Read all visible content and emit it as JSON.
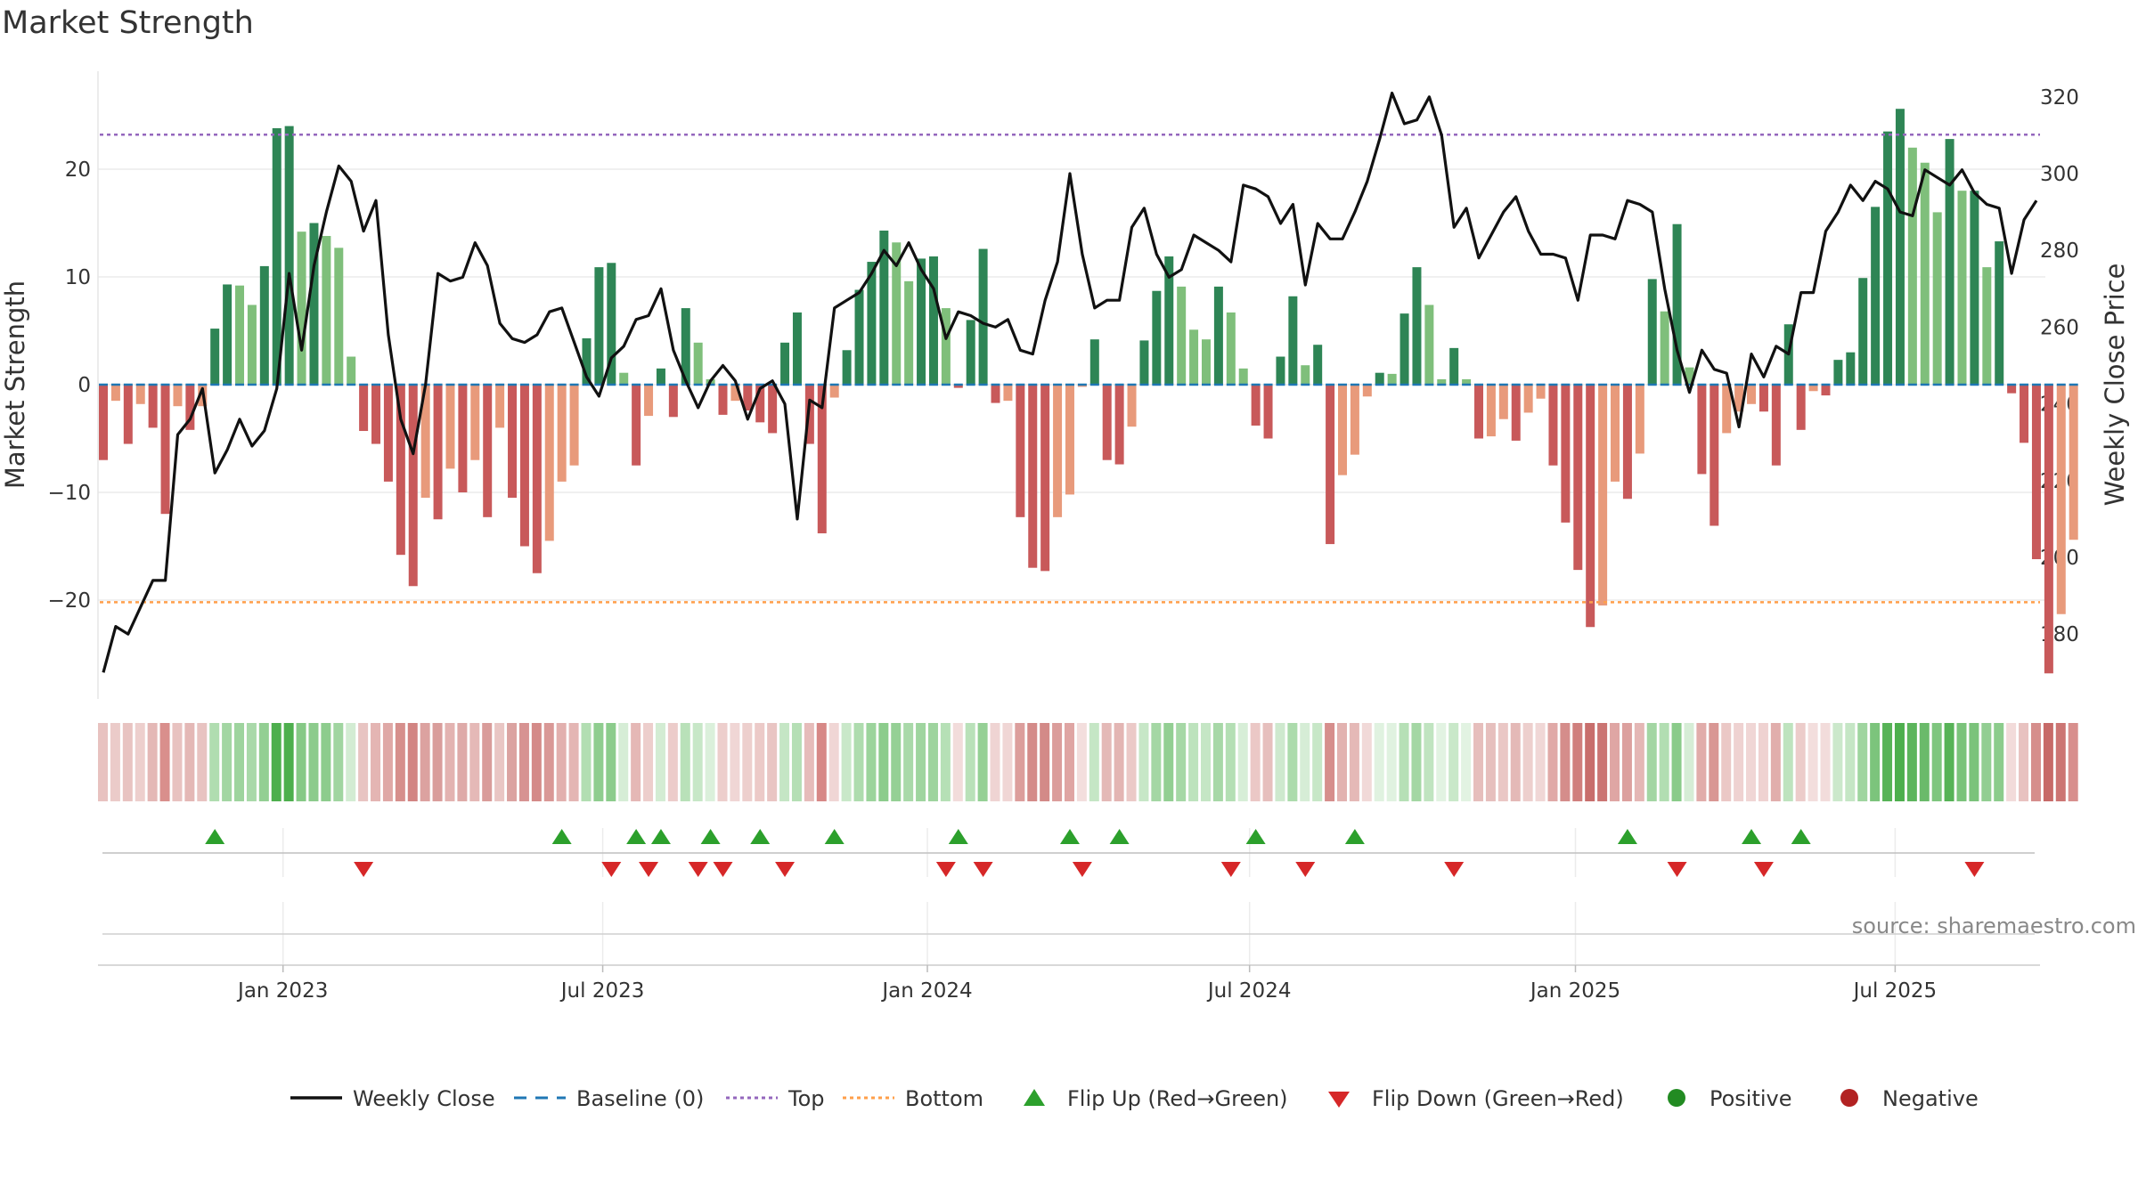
{
  "chart_data": {
    "type": "bar",
    "title": "Market Strength",
    "ylabel": "Market Strength",
    "y2label": "Weekly Close Price",
    "ylim": [
      -29,
      29.5
    ],
    "y2lim": [
      164,
      324
    ],
    "y_ticks": [
      20,
      10,
      0,
      -10,
      -20
    ],
    "y_tick_labels": [
      "20",
      "10",
      "0",
      "−10",
      "−20"
    ],
    "y2_ticks": [
      320,
      300,
      280,
      260,
      240,
      220,
      200,
      180
    ],
    "y2_tick_labels": [
      "320",
      "300",
      "280",
      "260",
      "240",
      "220",
      "200",
      "180"
    ],
    "x_ticks": [
      {
        "label": "Jan 2023",
        "index": 14.5
      },
      {
        "label": "Jul 2023",
        "index": 40.3
      },
      {
        "label": "Jan 2024",
        "index": 66.5
      },
      {
        "label": "Jul 2024",
        "index": 92.5
      },
      {
        "label": "Jan 2025",
        "index": 118.8
      },
      {
        "label": "Jul 2025",
        "index": 144.6
      }
    ],
    "top": 23.2,
    "bottom": -20.2,
    "strength": [
      -7,
      -1.5,
      -5.5,
      -1.8,
      -4,
      -12,
      -2,
      -4.2,
      -2,
      5.2,
      9.3,
      9.2,
      7.4,
      11,
      23.8,
      24,
      14.2,
      15,
      13.8,
      12.7,
      2.6,
      -4.3,
      -5.5,
      -9,
      -15.8,
      -18.7,
      -10.5,
      -12.5,
      -7.8,
      -10,
      -7,
      -12.3,
      -4,
      -10.5,
      -15,
      -17.5,
      -14.5,
      -9,
      -7.5,
      4.3,
      10.9,
      11.3,
      1.1,
      -7.5,
      -2.9,
      1.5,
      -3,
      7.1,
      3.9,
      0.5,
      -2.8,
      -1.5,
      -2.4,
      -3.5,
      -4.5,
      3.9,
      6.7,
      -5.5,
      -13.8,
      -1.2,
      3.2,
      8.8,
      11.4,
      14.3,
      13.2,
      9.6,
      11.7,
      11.9,
      7.1,
      -0.3,
      6,
      12.6,
      -1.7,
      -1.5,
      -12.3,
      -17,
      -17.3,
      -12.3,
      -10.2,
      -0.2,
      4.2,
      -7,
      -7.4,
      -3.9,
      4.1,
      8.7,
      11.9,
      9.1,
      5.1,
      4.2,
      9.1,
      6.7,
      1.5,
      -3.8,
      -5,
      2.6,
      8.2,
      1.8,
      3.7,
      -14.8,
      -8.4,
      -6.5,
      -1.1,
      1.1,
      1,
      6.6,
      10.9,
      7.4,
      0.5,
      3.4,
      0.5,
      -5,
      -4.8,
      -3.2,
      -5.2,
      -2.6,
      -1.3,
      -7.5,
      -12.8,
      -17.2,
      -22.5,
      -20.5,
      -9,
      -10.6,
      -6.4,
      9.8,
      6.8,
      14.9,
      1.6,
      -8.3,
      -13.1,
      -4.5,
      -2.5,
      -1.8,
      -2.5,
      -7.5,
      5.6,
      -4.2,
      -0.6,
      -1,
      2.3,
      3,
      9.9,
      16.5,
      23.5,
      25.6,
      22,
      20.6,
      16,
      22.8,
      18,
      18,
      10.9,
      13.3,
      -0.8,
      -5.4,
      -16.2,
      -26.8,
      -21.3,
      -14.4
    ],
    "weekly_close": [
      170,
      182,
      180,
      187,
      194,
      194,
      232,
      236,
      244,
      222,
      228,
      236,
      229,
      233,
      244,
      274,
      254,
      276,
      290,
      302,
      298,
      285,
      293,
      258,
      236,
      227,
      245,
      274,
      272,
      273,
      282,
      276,
      261,
      257,
      256,
      258,
      264,
      265,
      256,
      247,
      242,
      252,
      255,
      262,
      263,
      270,
      254,
      246,
      239,
      246,
      250,
      246,
      236,
      244,
      246,
      240,
      210,
      241,
      239,
      265,
      267,
      269,
      274,
      280,
      276,
      282,
      275,
      270,
      257,
      264,
      263,
      261,
      260,
      262,
      254,
      253,
      267,
      277,
      300,
      279,
      265,
      267,
      267,
      286,
      291,
      279,
      273,
      275,
      284,
      282,
      280,
      277,
      297,
      296,
      294,
      287,
      292,
      271,
      287,
      283,
      283,
      290,
      298,
      309,
      321,
      313,
      314,
      320,
      310,
      286,
      291,
      278,
      284,
      290,
      294,
      285,
      279,
      279,
      278,
      267,
      284,
      284,
      283,
      293,
      292,
      290,
      270,
      254,
      243,
      254,
      249,
      248,
      234,
      253,
      247,
      255,
      253,
      269,
      269,
      285,
      290,
      297,
      293,
      298,
      296,
      290,
      289,
      301,
      299,
      297,
      301,
      295,
      292,
      291,
      274,
      288,
      293
    ],
    "heat_colors": [
      "#e8c2c0",
      "#ebcbc9",
      "#e8c3c1",
      "#edcfcd",
      "#e4b8b6",
      "#d98f8c",
      "#e8c2c0",
      "#e4b8b6",
      "#e8c3c1",
      "#b0ddb0",
      "#a3d6a3",
      "#9ed49e",
      "#a9d9a9",
      "#93cf93",
      "#4daf4d",
      "#4daf4d",
      "#86c986",
      "#8ccb8c",
      "#8dcc8d",
      "#a0d5a0",
      "#d3ecd3",
      "#e8c4c2",
      "#e4b5b3",
      "#dfa8a6",
      "#d68f8c",
      "#d28482",
      "#dca2a0",
      "#d99d9b",
      "#e3b3b1",
      "#deaaa8",
      "#e5b9b7",
      "#d99c9a",
      "#e9c6c4",
      "#dba3a1",
      "#d79392",
      "#d48a88",
      "#d99896",
      "#e2b0ae",
      "#e4b6b4",
      "#b2deb2",
      "#8fcd8f",
      "#8ccc8c",
      "#d6edd6",
      "#e5b8b6",
      "#edcecc",
      "#d3ecd3",
      "#ecccca",
      "#b9e1b9",
      "#c7e7c7",
      "#dbf0db",
      "#edcecc",
      "#f0d6d5",
      "#edcfcd",
      "#eccac8",
      "#e9c5c3",
      "#c5e6c5",
      "#b5dfb5",
      "#e6bcba",
      "#d78886",
      "#f0d6d5",
      "#c9e8c9",
      "#aedcae",
      "#9cd49c",
      "#8ccc8c",
      "#95d095",
      "#a9d9a9",
      "#9fd59f",
      "#9ed49e",
      "#b6e0b6",
      "#f2dcdb",
      "#b9e1b9",
      "#95d095",
      "#efd4d3",
      "#f0d6d5",
      "#dc9e9c",
      "#d48b89",
      "#d38a88",
      "#db9d9b",
      "#df a5a3",
      "#f3dedd",
      "#c5e6c5",
      "#e4b9b7",
      "#e3b5b3",
      "#ebc9c7",
      "#c7e7c7",
      "#a4d7a4",
      "#93cf93",
      "#a6d8a6",
      "#bde3bd",
      "#c5e6c5",
      "#a7d8a7",
      "#b4dfb4",
      "#d7eed7",
      "#ebc8c6",
      "#e6bfbd",
      "#cee9ce",
      "#acdbac",
      "#d6edd6",
      "#c7e7c7",
      "#d68e8c",
      "#e2b2b0",
      "#e5b9b7",
      "#f1d9d8",
      "#e0f2e0",
      "#e0f2e0",
      "#b6e0b6",
      "#a4d7a4",
      "#c0e4c0",
      "#e2f3e2",
      "#c9e8c9",
      "#e2f3e2",
      "#e6bebc",
      "#e6bfbd",
      "#eac7c5",
      "#e4b9b7",
      "#edcfcd",
      "#f0d7d6",
      "#e0a9a7",
      "#d58d8b",
      "#d07f7d",
      "#c86e6c",
      "#cb7573",
      "#df a6a4",
      "#dca09e",
      "#e4b7b5",
      "#a3d6a3",
      "#b2deb2",
      "#8acb8a",
      "#d6edd6",
      "#e1acaa",
      "#d99794",
      "#ebc8c6",
      "#efd2d1",
      "#f0d6d5",
      "#efd2d1",
      "#e1aeac",
      "#bee3be",
      "#ecccca",
      "#f3dedd",
      "#f2dcdb",
      "#cbe8cb",
      "#c5e6c5",
      "#9fd59f",
      "#7cc47c",
      "#57b357",
      "#4daf4d",
      "#5cb55c",
      "#6aba6a",
      "#7ec67e",
      "#57b357",
      "#7bc37b",
      "#7bc37b",
      "#92ce92",
      "#8ccc8c",
      "#f2dbda",
      "#e8c2c0",
      "#d68e8c",
      "#c76a68",
      "#cc7573",
      "#d88f8d"
    ],
    "flip_up_indices": [
      9,
      37,
      43,
      45,
      49,
      53,
      59,
      69,
      78,
      82,
      93,
      101,
      123,
      133,
      137
    ],
    "flip_down_indices": [
      21,
      41,
      44,
      48,
      50,
      55,
      68,
      71,
      79,
      91,
      97,
      109,
      127,
      134,
      151
    ],
    "legend": [
      {
        "kind": "line-solid",
        "label": "Weekly Close",
        "color": "#111111"
      },
      {
        "kind": "line-dash",
        "label": "Baseline (0)",
        "color": "#1f77b4"
      },
      {
        "kind": "line-dot",
        "label": "Top",
        "color": "#9467bd"
      },
      {
        "kind": "line-dot",
        "label": "Bottom",
        "color": "#ff9f4a"
      },
      {
        "kind": "tri-up",
        "label": "Flip Up (Red→Green)",
        "color": "#2ca02c"
      },
      {
        "kind": "tri-down",
        "label": "Flip Down (Green→Red)",
        "color": "#d62728"
      },
      {
        "kind": "dot",
        "label": "Positive",
        "color": "#228b22"
      },
      {
        "kind": "dot",
        "label": "Negative",
        "color": "#b22222"
      }
    ],
    "source": "source: sharemaestro.com"
  },
  "colors": {
    "pos_strong": "#2e8555",
    "pos_weak": "#7fbf7b",
    "neg_strong": "#c8595a",
    "neg_weak": "#e89a7b",
    "price_line": "#111111",
    "baseline": "#1f77b4",
    "top_line": "#9467bd",
    "bottom_line": "#ff9f4a"
  }
}
